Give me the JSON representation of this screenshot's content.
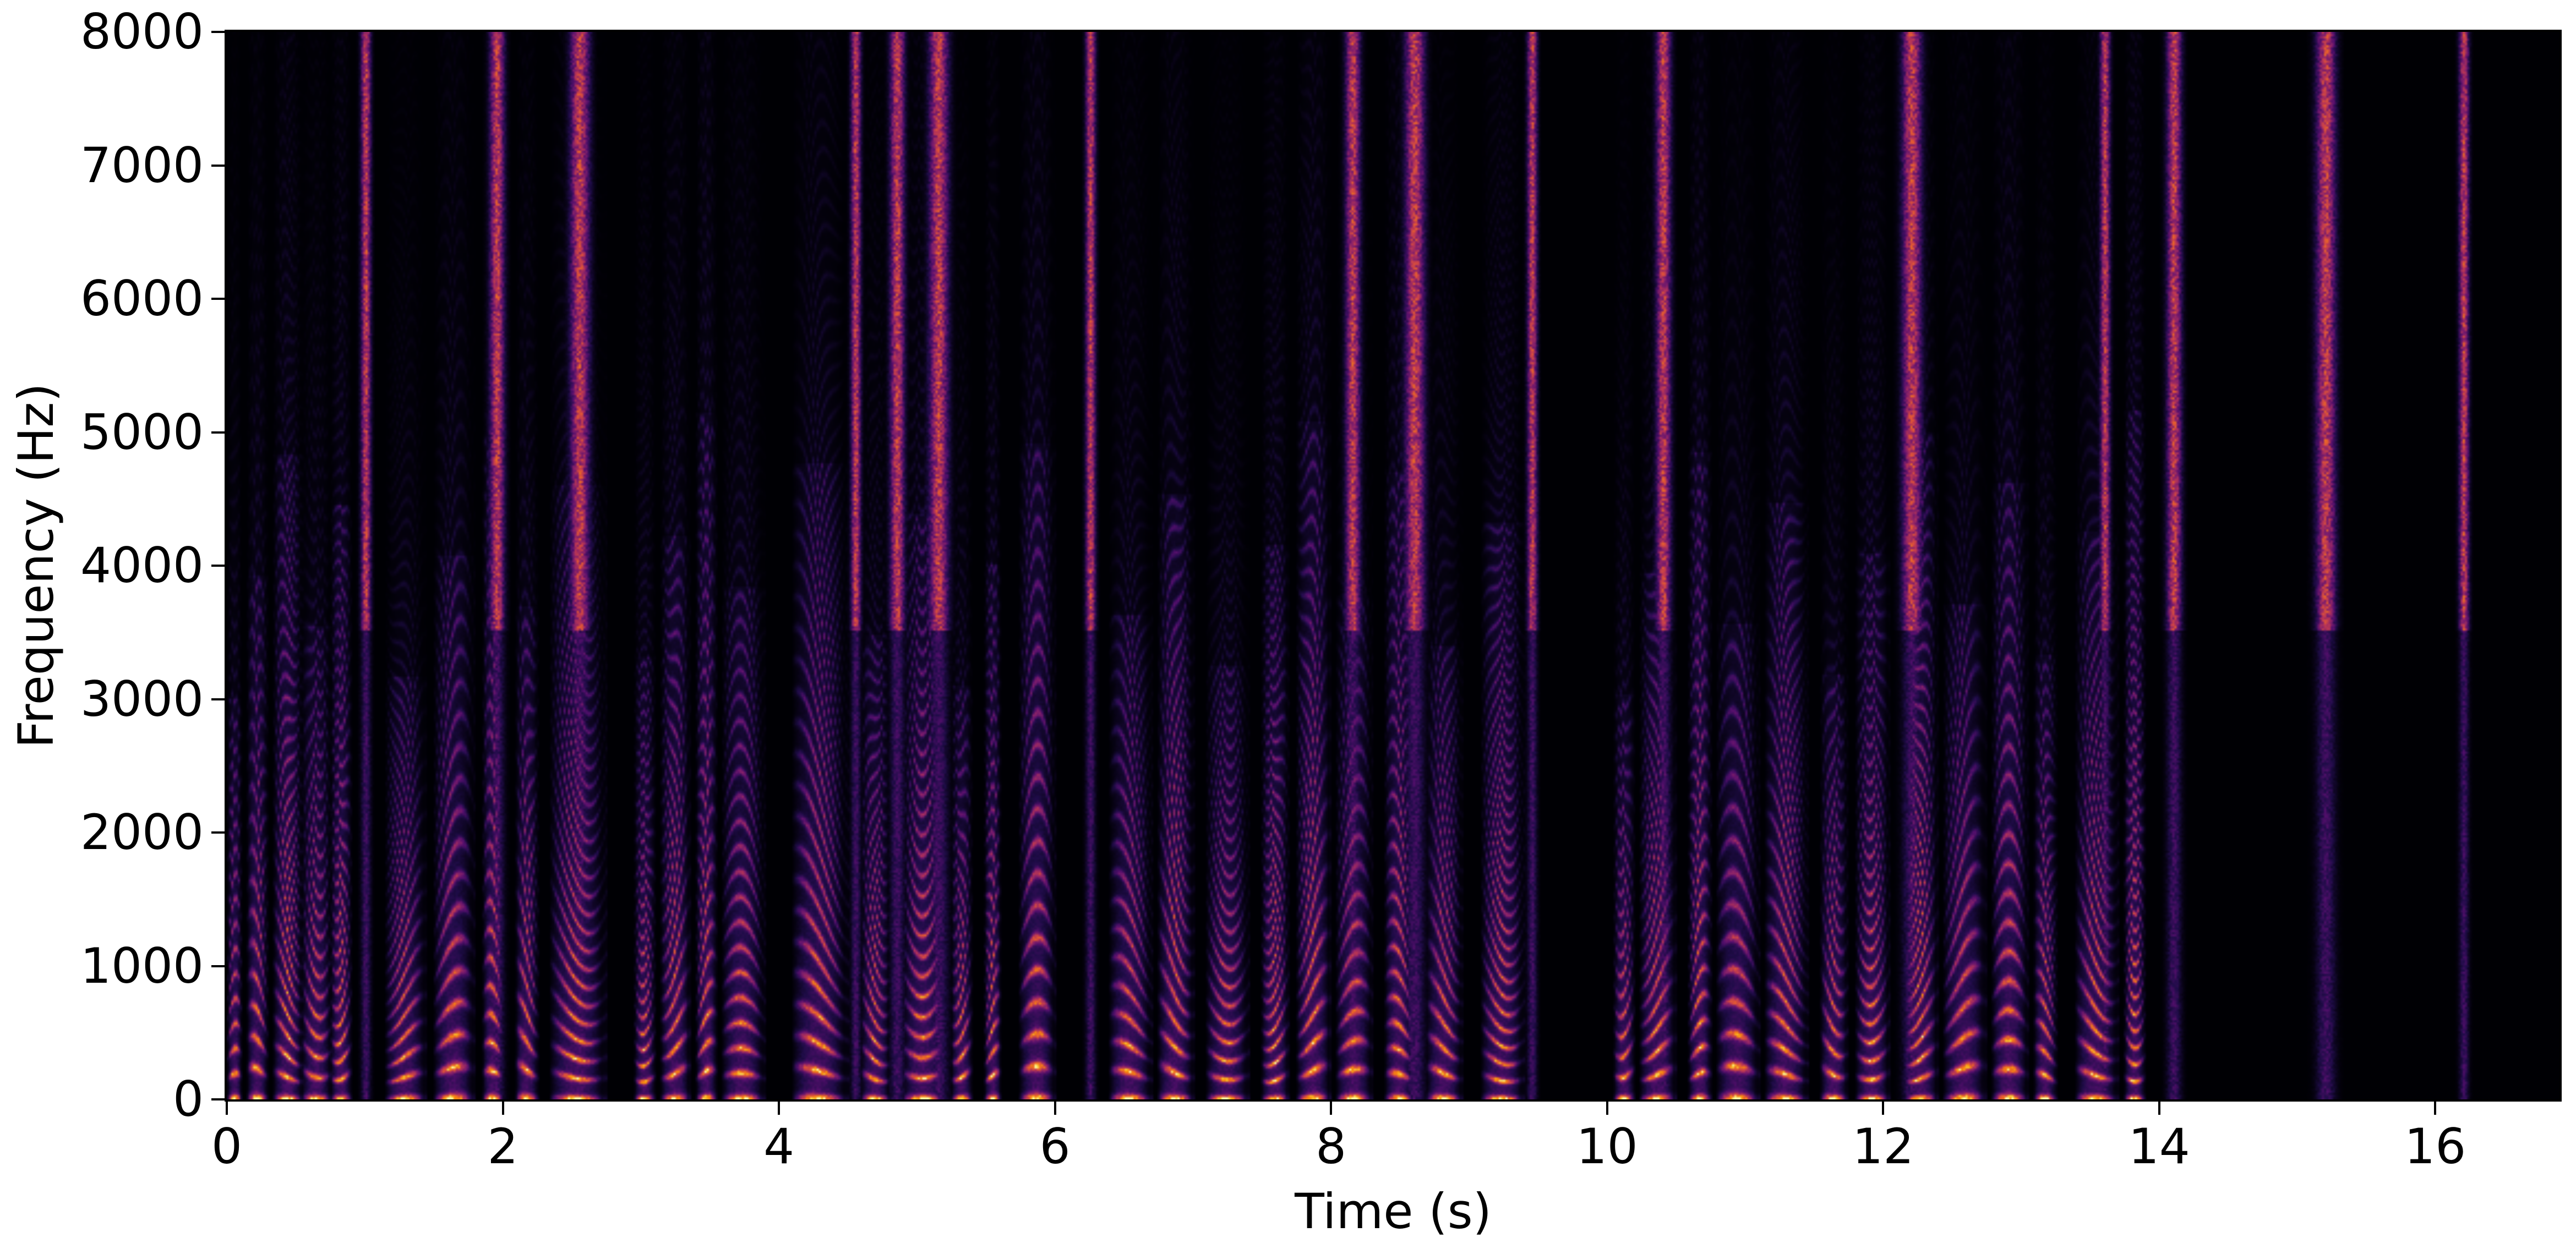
{
  "chart_data": {
    "type": "heatmap",
    "title": "",
    "xlabel": "Time (s)",
    "ylabel": "Frequency (Hz)",
    "xlim": [
      0,
      16.9
    ],
    "ylim": [
      0,
      8000
    ],
    "xticks": [
      0,
      2,
      4,
      6,
      8,
      10,
      12,
      14,
      16
    ],
    "yticks": [
      0,
      1000,
      2000,
      3000,
      4000,
      5000,
      6000,
      7000,
      8000
    ],
    "colormap": "inferno",
    "grid": false,
    "voiced_segments_s": [
      [
        0.0,
        0.1
      ],
      [
        0.15,
        0.3
      ],
      [
        0.35,
        0.55
      ],
      [
        0.55,
        0.75
      ],
      [
        0.75,
        0.9
      ],
      [
        1.15,
        1.45
      ],
      [
        1.5,
        1.8
      ],
      [
        1.85,
        2.0
      ],
      [
        2.1,
        2.25
      ],
      [
        2.35,
        2.75
      ],
      [
        2.95,
        3.1
      ],
      [
        3.15,
        3.35
      ],
      [
        3.4,
        3.55
      ],
      [
        3.6,
        3.9
      ],
      [
        4.1,
        4.5
      ],
      [
        4.6,
        4.8
      ],
      [
        4.9,
        5.2
      ],
      [
        5.25,
        5.4
      ],
      [
        5.5,
        5.6
      ],
      [
        5.75,
        6.0
      ],
      [
        6.4,
        6.7
      ],
      [
        6.75,
        7.0
      ],
      [
        7.1,
        7.4
      ],
      [
        7.5,
        7.7
      ],
      [
        7.75,
        8.0
      ],
      [
        8.05,
        8.3
      ],
      [
        8.4,
        8.6
      ],
      [
        8.7,
        8.95
      ],
      [
        9.1,
        9.4
      ],
      [
        10.05,
        10.2
      ],
      [
        10.25,
        10.5
      ],
      [
        10.6,
        10.75
      ],
      [
        10.8,
        11.1
      ],
      [
        11.15,
        11.45
      ],
      [
        11.55,
        11.75
      ],
      [
        11.8,
        12.05
      ],
      [
        12.15,
        12.4
      ],
      [
        12.45,
        12.75
      ],
      [
        12.8,
        13.05
      ],
      [
        13.1,
        13.25
      ],
      [
        13.4,
        13.7
      ],
      [
        13.75,
        13.9
      ]
    ],
    "fricative_bursts_s": [
      1.0,
      1.95,
      2.55,
      4.55,
      4.85,
      5.15,
      6.25,
      8.15,
      8.6,
      9.45,
      10.4,
      12.2,
      13.6,
      14.1,
      15.2,
      16.2
    ]
  }
}
